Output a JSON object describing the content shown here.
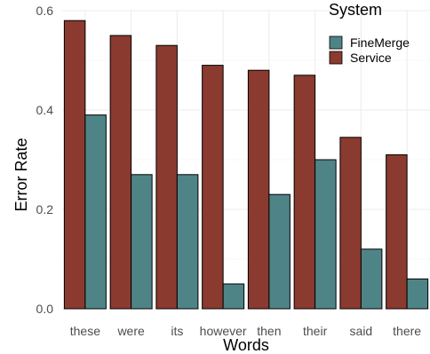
{
  "chart_data": {
    "type": "bar",
    "categories": [
      "these",
      "were",
      "its",
      "however",
      "then",
      "their",
      "said",
      "there"
    ],
    "series": [
      {
        "name": "Service",
        "values": [
          0.58,
          0.55,
          0.53,
          0.49,
          0.48,
          0.47,
          0.345,
          0.31
        ]
      },
      {
        "name": "FineMerge",
        "values": [
          0.39,
          0.27,
          0.27,
          0.05,
          0.23,
          0.3,
          0.12,
          0.06
        ]
      }
    ],
    "title": "",
    "xlabel": "Words",
    "ylabel": "Error Rate",
    "ylim": [
      0,
      0.62
    ],
    "yticks": [
      "0.0",
      "0.2",
      "0.4",
      "0.6"
    ],
    "legend": {
      "title": "System",
      "placement": "top-right",
      "entries": [
        "FineMerge",
        "Service"
      ]
    },
    "grid": true,
    "colors": {
      "Service": "#8b3a2f",
      "FineMerge": "#4f8487"
    }
  }
}
